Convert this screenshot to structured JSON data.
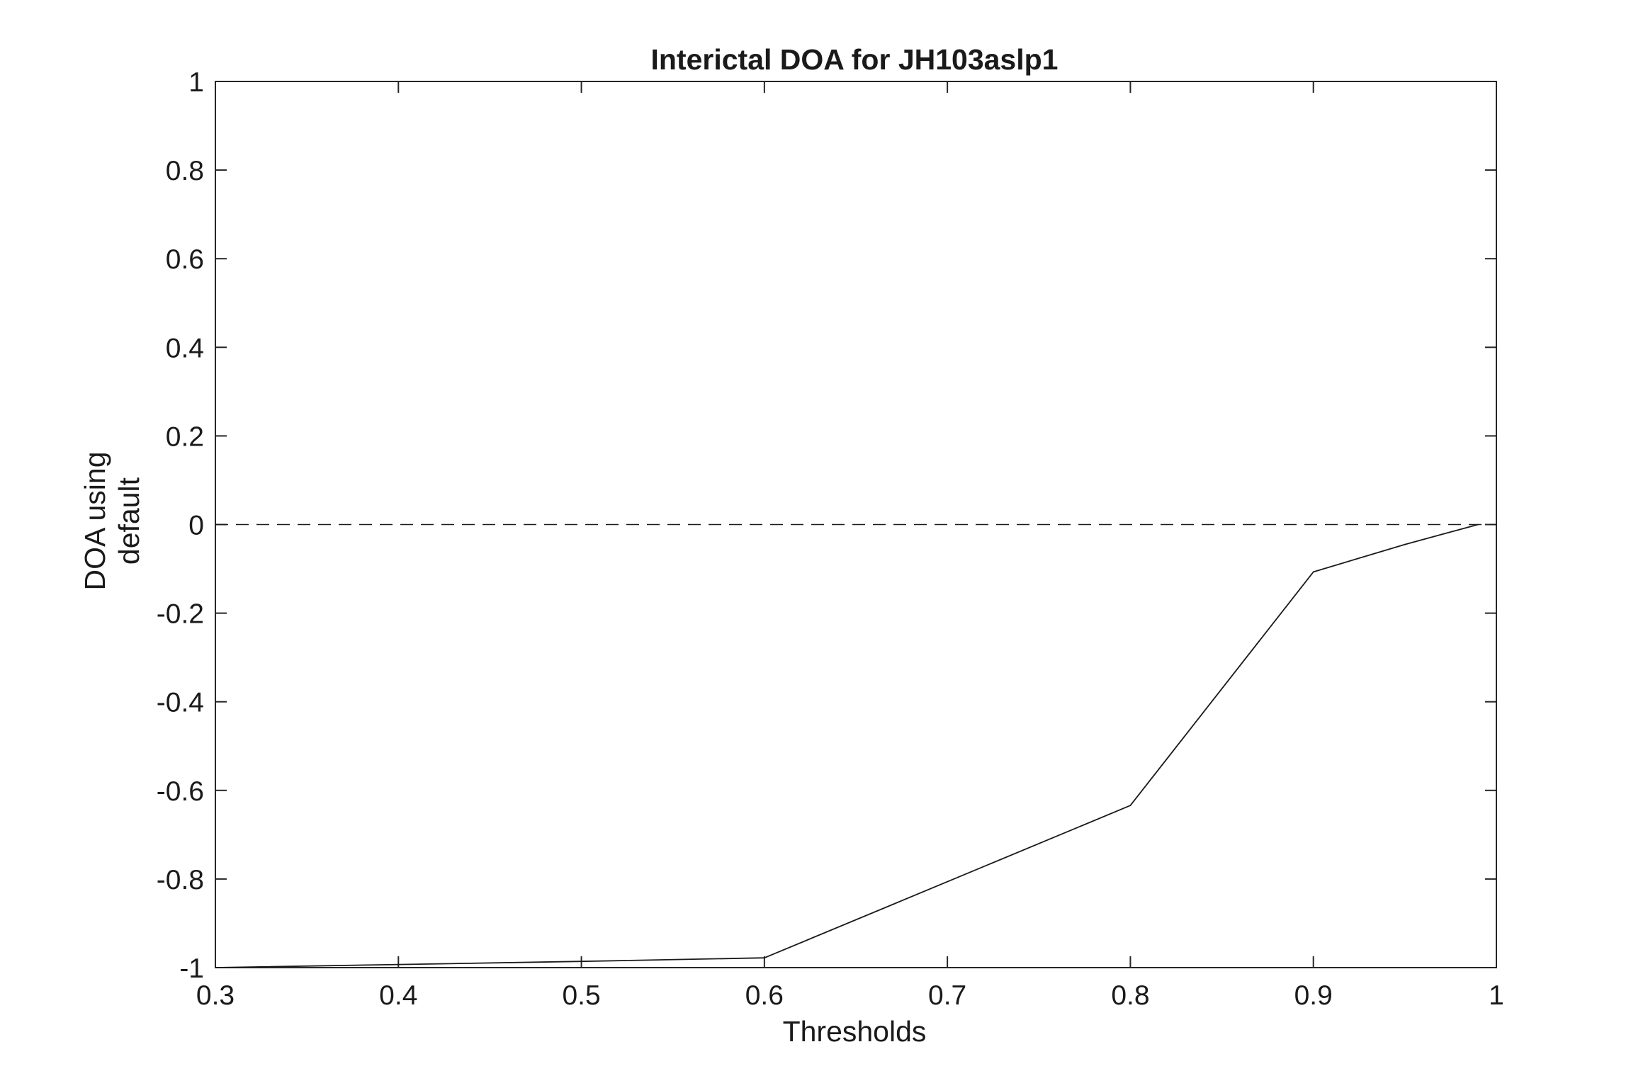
{
  "chart_data": {
    "type": "line",
    "title": "Interictal DOA for JH103aslp1",
    "xlabel": "Thresholds",
    "ylabel": [
      "DOA using",
      "default"
    ],
    "xlim": [
      0.3,
      1
    ],
    "ylim": [
      -1,
      1
    ],
    "xticks": [
      0.3,
      0.4,
      0.5,
      0.6,
      0.7,
      0.8,
      0.9,
      1
    ],
    "xtick_labels": [
      "0.3",
      "0.4",
      "0.5",
      "0.6",
      "0.7",
      "0.8",
      "0.9",
      "1"
    ],
    "yticks": [
      -1,
      -0.8,
      -0.6,
      -0.4,
      -0.2,
      0,
      0.2,
      0.4,
      0.6,
      0.8,
      1
    ],
    "ytick_labels": [
      "-1",
      "-0.8",
      "-0.6",
      "-0.4",
      "-0.2",
      "0",
      "0.2",
      "0.4",
      "0.6",
      "0.8",
      "1"
    ],
    "grid": false,
    "series": [
      {
        "x": [
          0.3,
          0.4,
          0.5,
          0.6,
          0.7,
          0.8,
          0.9,
          0.95,
          0.99
        ],
        "y": [
          -1.0,
          -0.993,
          -0.986,
          -0.978,
          -0.806,
          -0.634,
          -0.107,
          -0.045,
          0.0
        ],
        "color": "#1a1a1a",
        "style": "solid"
      }
    ],
    "reference_lines": [
      {
        "y": 0,
        "style": "dashed",
        "color": "#1a1a1a"
      }
    ]
  }
}
